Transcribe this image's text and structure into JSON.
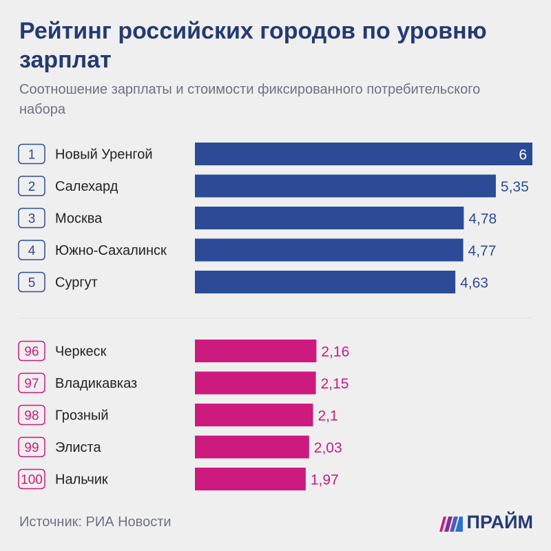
{
  "chart_data": {
    "type": "bar",
    "orientation": "horizontal",
    "title": "Рейтинг российских городов по уровню зарплат",
    "subtitle": "Соотношение зарплаты и стоимости фиксированного потребительского набора",
    "xlim": [
      0,
      6
    ],
    "groups": [
      {
        "name": "top",
        "color": "#2c4a96",
        "rows": [
          {
            "rank": "1",
            "city": "Новый Уренгой",
            "value": 6,
            "label": "6"
          },
          {
            "rank": "2",
            "city": "Салехард",
            "value": 5.35,
            "label": "5,35"
          },
          {
            "rank": "3",
            "city": "Москва",
            "value": 4.78,
            "label": "4,78"
          },
          {
            "rank": "4",
            "city": "Южно-Сахалинск",
            "value": 4.77,
            "label": "4,77"
          },
          {
            "rank": "5",
            "city": "Сургут",
            "value": 4.63,
            "label": "4,63"
          }
        ]
      },
      {
        "name": "bottom",
        "color": "#cc1a7e",
        "rows": [
          {
            "rank": "96",
            "city": "Черкеск",
            "value": 2.16,
            "label": "2,16"
          },
          {
            "rank": "97",
            "city": "Владикавказ",
            "value": 2.15,
            "label": "2,15"
          },
          {
            "rank": "98",
            "city": "Грозный",
            "value": 2.1,
            "label": "2,1"
          },
          {
            "rank": "99",
            "city": "Элиста",
            "value": 2.03,
            "label": "2,03"
          },
          {
            "rank": "100",
            "city": "Нальчик",
            "value": 1.97,
            "label": "1,97"
          }
        ]
      }
    ]
  },
  "footer": {
    "source": "Источник: РИА Новости",
    "logo_text": "ПРАЙМ"
  },
  "colors": {
    "title": "#253a73",
    "subtitle": "#6c7280",
    "top_bar": "#2c4a96",
    "bottom_bar": "#cc1a7e",
    "background": "#efefef"
  }
}
